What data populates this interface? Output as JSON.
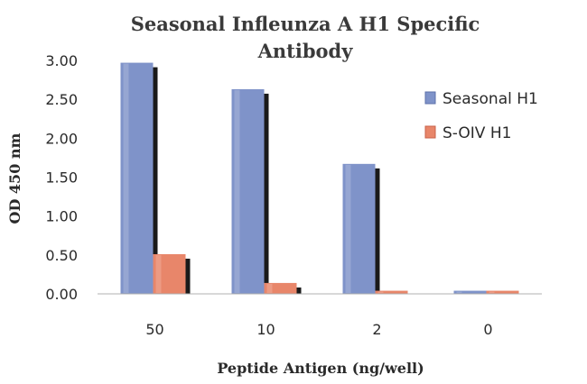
{
  "chart_data": {
    "type": "bar",
    "title": "Seasonal Infleunza A H1 Specific Antibody",
    "title_lines": [
      "Seasonal Infleunza A H1 Specific",
      "Antibody"
    ],
    "xlabel": "Peptide Antigen (ng/well)",
    "ylabel": "OD 450 nm",
    "categories": [
      "50",
      "10",
      "2",
      "0"
    ],
    "ylim": [
      0,
      3.0
    ],
    "yticks": [
      "0.00",
      "0.50",
      "1.00",
      "1.50",
      "2.00",
      "2.50",
      "3.00"
    ],
    "series": [
      {
        "name": "Seasonal H1",
        "values": [
          2.97,
          2.63,
          1.67,
          0.04
        ],
        "color": "#7f93c9",
        "color_dark": "#5d70aa"
      },
      {
        "name": "S-OIV H1",
        "values": [
          0.51,
          0.14,
          0.04,
          0.04
        ],
        "color": "#e8866a",
        "color_dark": "#c8624a"
      }
    ],
    "legend": "right",
    "grid": false
  }
}
